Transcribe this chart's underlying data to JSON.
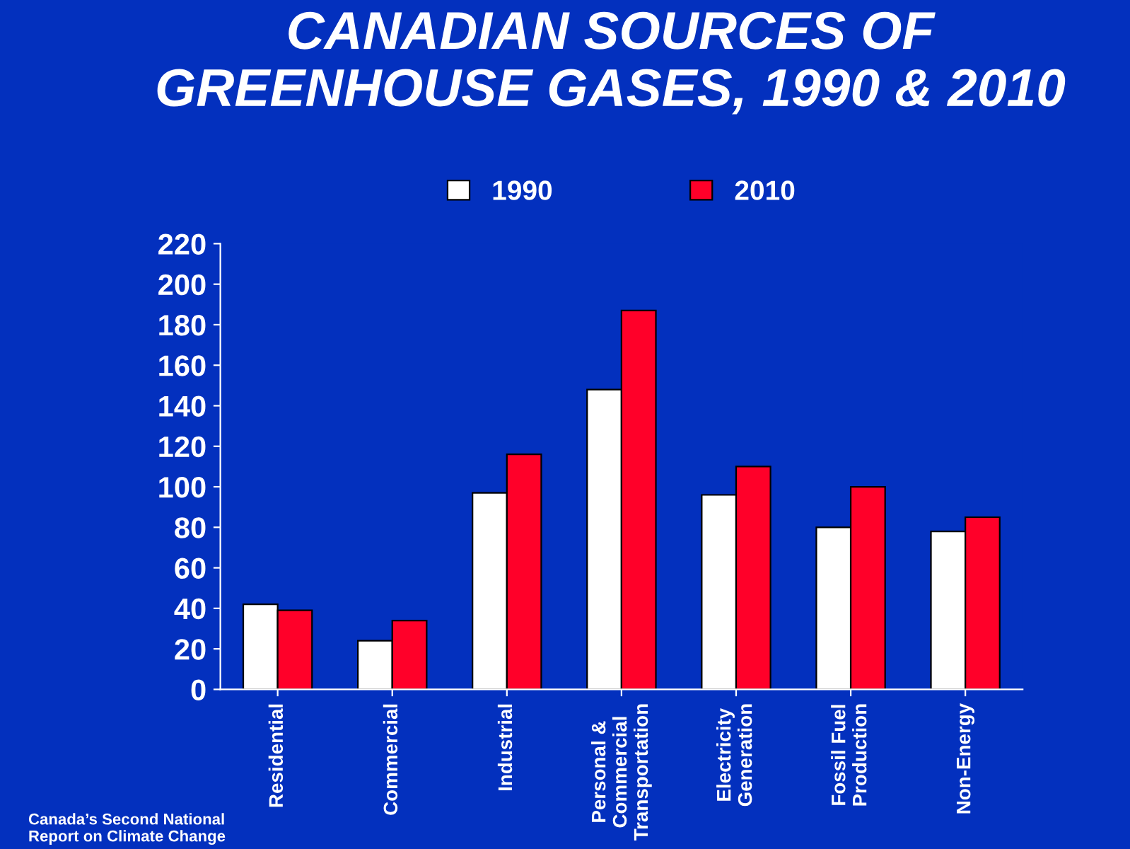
{
  "chart_data": {
    "type": "bar",
    "title": "CANADIAN SOURCES OF\nGREENHOUSE GASES, 1990 & 2010",
    "categories": [
      "Residential",
      "Commercial",
      "Industrial",
      "Personal &\nCommercial\nTransportation",
      "Electricity\nGeneration",
      "Fossil Fuel\nProduction",
      "Non-Energy"
    ],
    "series": [
      {
        "name": "1990",
        "color": "#ffffff",
        "values": [
          42,
          24,
          97,
          148,
          96,
          80,
          78
        ]
      },
      {
        "name": "2010",
        "color": "#ff0029",
        "values": [
          39,
          34,
          116,
          187,
          110,
          100,
          85
        ]
      }
    ],
    "ylim": [
      0,
      220
    ],
    "yticks": [
      0,
      20,
      40,
      60,
      80,
      100,
      120,
      140,
      160,
      180,
      200,
      220
    ],
    "grid": false,
    "legend": "top",
    "annotations": [
      "Canada’s Second National\nReport on Climate Change"
    ]
  }
}
